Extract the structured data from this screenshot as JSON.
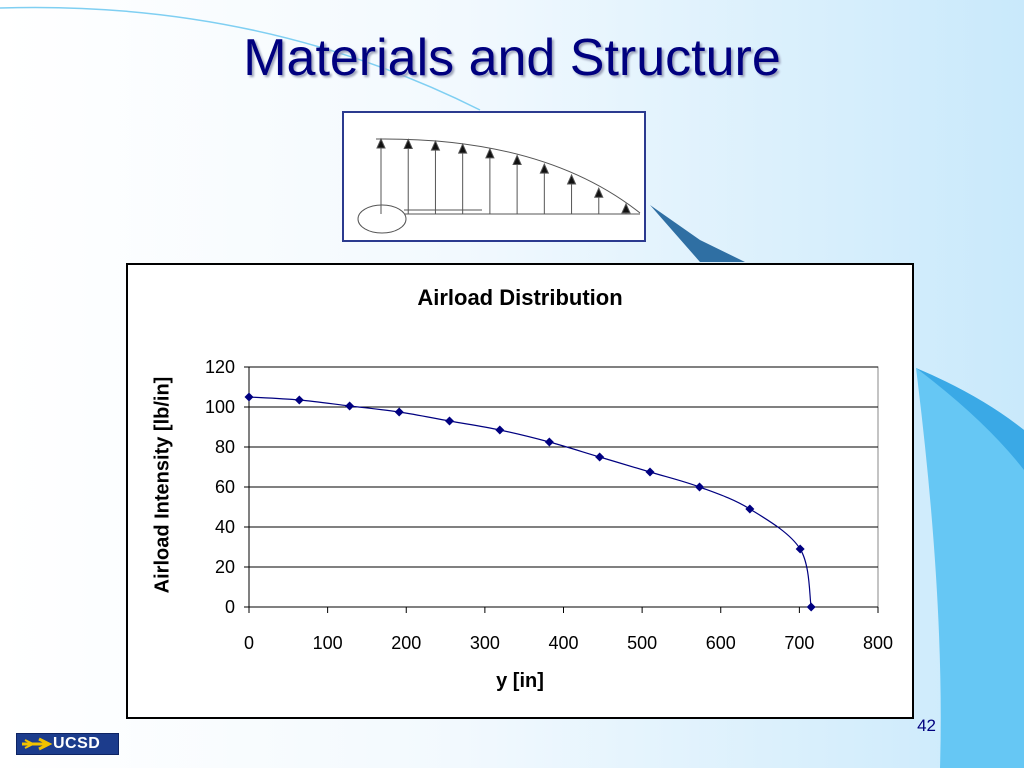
{
  "slide": {
    "title": "Materials and Structure",
    "page_number": "42",
    "logo_text": "UCSD"
  },
  "colors": {
    "title": "#00007f",
    "series": "#000080",
    "background_accent": "#66c7f4"
  },
  "diagram": {
    "description_icon": "airload-arrows-diagram-icon",
    "arrow_count": 10
  },
  "chart_data": {
    "type": "line",
    "title": "Airload Distribution",
    "xlabel": "y [in]",
    "ylabel": "Airload Intensity [lb/in]",
    "xlim": [
      0,
      800
    ],
    "ylim": [
      0,
      120
    ],
    "xticks": [
      0,
      100,
      200,
      300,
      400,
      500,
      600,
      700,
      800
    ],
    "yticks": [
      0,
      20,
      40,
      60,
      80,
      100,
      120
    ],
    "grid": "horizontal",
    "legend": "none",
    "series": [
      {
        "x": [
          0,
          64,
          128,
          191,
          255,
          319,
          382,
          446,
          510,
          573,
          637,
          701,
          715
        ],
        "y": [
          105,
          103.5,
          100.5,
          97.5,
          93,
          88.5,
          82.5,
          75,
          67.5,
          60,
          49,
          29,
          0
        ]
      }
    ]
  }
}
